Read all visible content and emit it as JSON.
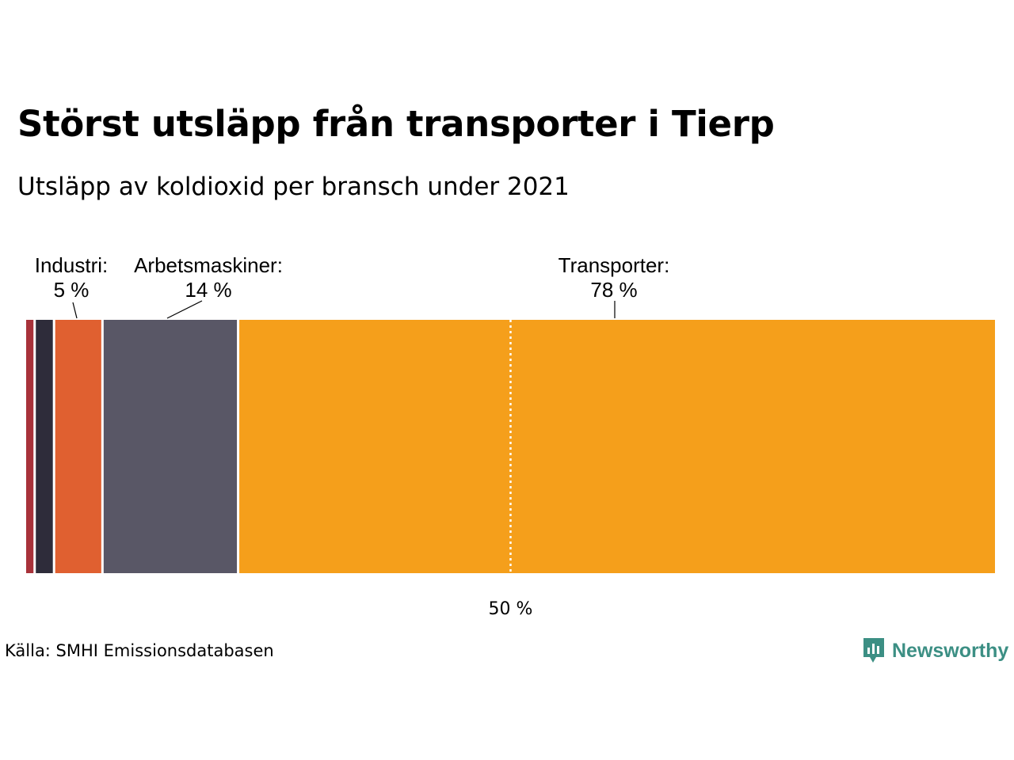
{
  "title": "Störst utsläpp från transporter i Tierp",
  "subtitle": "Utsläpp av koldioxid per bransch under 2021",
  "source": "Källa: SMHI Emissionsdatabasen",
  "brand": {
    "name": "Newsworthy",
    "icon": "newsworthy-logo-icon",
    "color": "#3c8f84"
  },
  "chart_data": {
    "type": "bar",
    "orientation": "horizontal-stacked",
    "unit": "%",
    "xlim": [
      0,
      100
    ],
    "reference_line": {
      "value": 50,
      "label": "50 %"
    },
    "segments": [
      {
        "name": "",
        "value": 1,
        "color": "#a8323a",
        "label": "",
        "value_label": ""
      },
      {
        "name": "",
        "value": 2,
        "color": "#2e2c3a",
        "label": "",
        "value_label": ""
      },
      {
        "name": "Industri",
        "value": 5,
        "color": "#e06030",
        "label": "Industri:",
        "value_label": "5 %"
      },
      {
        "name": "Arbetsmaskiner",
        "value": 14,
        "color": "#595766",
        "label": "Arbetsmaskiner:",
        "value_label": "14 %"
      },
      {
        "name": "Transporter",
        "value": 78,
        "color": "#f59f1b",
        "label": "Transporter:",
        "value_label": "78 %"
      }
    ]
  }
}
